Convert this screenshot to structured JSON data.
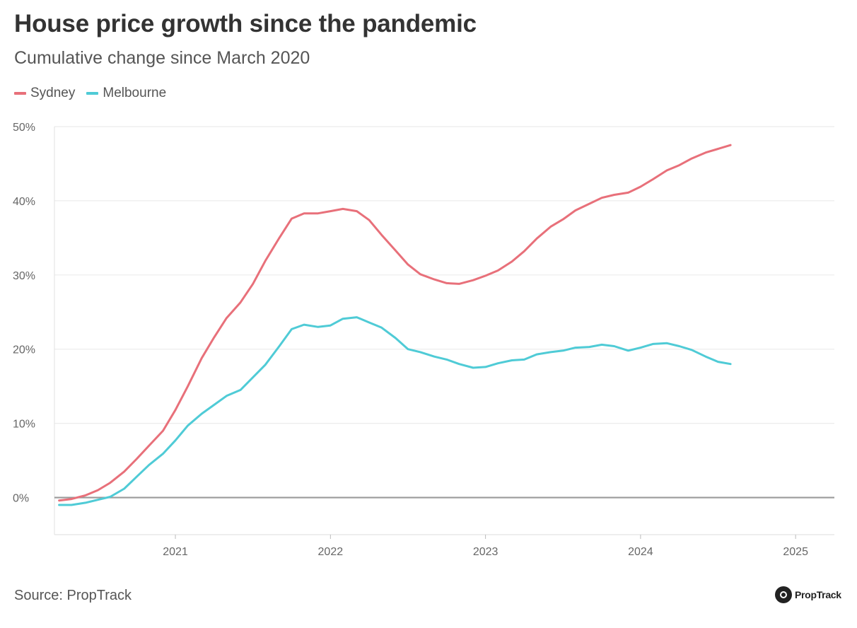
{
  "chart_data": {
    "type": "line",
    "title": "House price growth since the pandemic",
    "subtitle": "Cumulative change since March 2020",
    "xlabel": "",
    "ylabel": "",
    "xlim": [
      2020.22,
      2025.25
    ],
    "ylim": [
      -5,
      50
    ],
    "yticks": [
      0,
      10,
      20,
      30,
      40,
      50
    ],
    "ytick_labels": [
      "0%",
      "10%",
      "20%",
      "30%",
      "40%",
      "50%"
    ],
    "xticks": [
      2021,
      2022,
      2023,
      2024,
      2025
    ],
    "xtick_labels": [
      "2021",
      "2022",
      "2023",
      "2024",
      "2025"
    ],
    "grid": true,
    "legend_position": "top-left",
    "series": [
      {
        "name": "Sydney",
        "color": "#e8707a",
        "x": [
          2020.25,
          2020.33,
          2020.42,
          2020.5,
          2020.58,
          2020.67,
          2020.75,
          2020.83,
          2020.92,
          2021.0,
          2021.08,
          2021.17,
          2021.25,
          2021.33,
          2021.42,
          2021.5,
          2021.58,
          2021.67,
          2021.75,
          2021.83,
          2021.92,
          2022.0,
          2022.08,
          2022.17,
          2022.25,
          2022.33,
          2022.42,
          2022.5,
          2022.58,
          2022.67,
          2022.75,
          2022.83,
          2022.92,
          2023.0,
          2023.08,
          2023.17,
          2023.25,
          2023.33,
          2023.42,
          2023.5,
          2023.58,
          2023.67,
          2023.75,
          2023.83,
          2023.92,
          2024.0,
          2024.08,
          2024.17,
          2024.25,
          2024.33,
          2024.42,
          2024.5,
          2024.58
        ],
        "values": [
          -0.4,
          -0.2,
          0.3,
          1.0,
          2.0,
          3.5,
          5.2,
          7.0,
          9.0,
          11.8,
          15.0,
          18.8,
          21.6,
          24.2,
          26.3,
          28.8,
          31.9,
          35.0,
          37.6,
          38.3,
          38.3,
          38.6,
          38.9,
          38.6,
          37.4,
          35.4,
          33.3,
          31.4,
          30.1,
          29.4,
          28.9,
          28.8,
          29.3,
          29.9,
          30.6,
          31.8,
          33.2,
          34.9,
          36.5,
          37.5,
          38.7,
          39.6,
          40.4,
          40.8,
          41.1,
          41.9,
          42.9,
          44.1,
          44.8,
          45.7,
          46.5,
          47.0,
          47.5
        ]
      },
      {
        "name": "Melbourne",
        "color": "#4fcbd6",
        "x": [
          2020.25,
          2020.33,
          2020.42,
          2020.5,
          2020.58,
          2020.67,
          2020.75,
          2020.83,
          2020.92,
          2021.0,
          2021.08,
          2021.17,
          2021.25,
          2021.33,
          2021.42,
          2021.5,
          2021.58,
          2021.67,
          2021.75,
          2021.83,
          2021.92,
          2022.0,
          2022.08,
          2022.17,
          2022.25,
          2022.33,
          2022.42,
          2022.5,
          2022.58,
          2022.67,
          2022.75,
          2022.83,
          2022.92,
          2023.0,
          2023.08,
          2023.17,
          2023.25,
          2023.33,
          2023.42,
          2023.5,
          2023.58,
          2023.67,
          2023.75,
          2023.83,
          2023.92,
          2024.0,
          2024.08,
          2024.17,
          2024.25,
          2024.33,
          2024.42,
          2024.5,
          2024.58
        ],
        "values": [
          -1.0,
          -1.0,
          -0.7,
          -0.3,
          0.1,
          1.2,
          2.8,
          4.4,
          5.9,
          7.7,
          9.7,
          11.3,
          12.5,
          13.7,
          14.5,
          16.2,
          17.9,
          20.4,
          22.7,
          23.3,
          23.0,
          23.2,
          24.1,
          24.3,
          23.6,
          22.9,
          21.5,
          20.0,
          19.6,
          19.0,
          18.6,
          18.0,
          17.5,
          17.6,
          18.1,
          18.5,
          18.6,
          19.3,
          19.6,
          19.8,
          20.2,
          20.3,
          20.6,
          20.4,
          19.8,
          20.2,
          20.7,
          20.8,
          20.4,
          19.9,
          19.0,
          18.3,
          18.0
        ]
      }
    ]
  },
  "source": "Source: PropTrack",
  "brand": "PropTrack"
}
